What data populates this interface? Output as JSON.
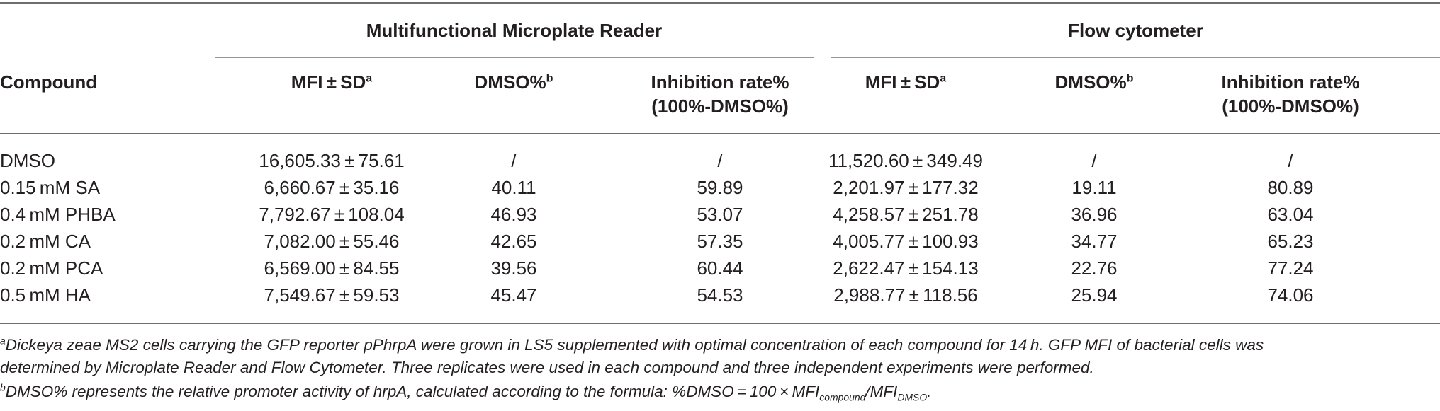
{
  "table": {
    "group_headers": [
      "Multifunctional Microplate Reader",
      "Flow cytometer"
    ],
    "compound_header": "Compound",
    "columns": [
      {
        "lines": [
          "MFI ± SD"
        ],
        "sup": "a"
      },
      {
        "lines": [
          "DMSO%"
        ],
        "sup": "b"
      },
      {
        "lines": [
          "Inhibition rate%",
          "(100%-DMSO%)"
        ],
        "sup": ""
      },
      {
        "lines": [
          "MFI ± SD"
        ],
        "sup": "a"
      },
      {
        "lines": [
          "DMSO%"
        ],
        "sup": "b"
      },
      {
        "lines": [
          "Inhibition rate%",
          "(100%-DMSO%)"
        ],
        "sup": ""
      }
    ],
    "rows": [
      {
        "compound": "DMSO",
        "cells": [
          "16,605.33 ± 75.61",
          "/",
          "/",
          "11,520.60 ± 349.49",
          "/",
          "/"
        ]
      },
      {
        "compound": "0.15 mM SA",
        "cells": [
          "6,660.67 ± 35.16",
          "40.11",
          "59.89",
          "2,201.97 ± 177.32",
          "19.11",
          "80.89"
        ]
      },
      {
        "compound": "0.4 mM PHBA",
        "cells": [
          "7,792.67 ± 108.04",
          "46.93",
          "53.07",
          "4,258.57 ± 251.78",
          "36.96",
          "63.04"
        ]
      },
      {
        "compound": "0.2 mM CA",
        "cells": [
          "7,082.00 ± 55.46",
          "42.65",
          "57.35",
          "4,005.77 ± 100.93",
          "34.77",
          "65.23"
        ]
      },
      {
        "compound": "0.2 mM PCA",
        "cells": [
          "6,569.00 ± 84.55",
          "39.56",
          "60.44",
          "2,622.47 ± 154.13",
          "22.76",
          "77.24"
        ]
      },
      {
        "compound": "0.5 mM HA",
        "cells": [
          "7,549.67 ± 59.53",
          "45.47",
          "54.53",
          "2,988.77 ± 118.56",
          "25.94",
          "74.06"
        ]
      }
    ]
  },
  "footnotes": {
    "a": {
      "mark": "a",
      "line1": "Dickeya zeae MS2 cells carrying the GFP reporter pPhrpA were grown in LS5 supplemented with optimal concentration of each compound for 14 h. GFP MFI of bacterial cells was",
      "line2": "determined by Microplate Reader and Flow Cytometer. Three replicates were used in each compound and three independent experiments were performed."
    },
    "b": {
      "mark": "b",
      "text": "DMSO% represents the relative promoter activity of hrpA, calculated according to the formula: %DMSO = 100 × MFI",
      "sub1": "compound",
      "slash": "/MFI",
      "sub2": "DMSO",
      "end": "."
    }
  }
}
